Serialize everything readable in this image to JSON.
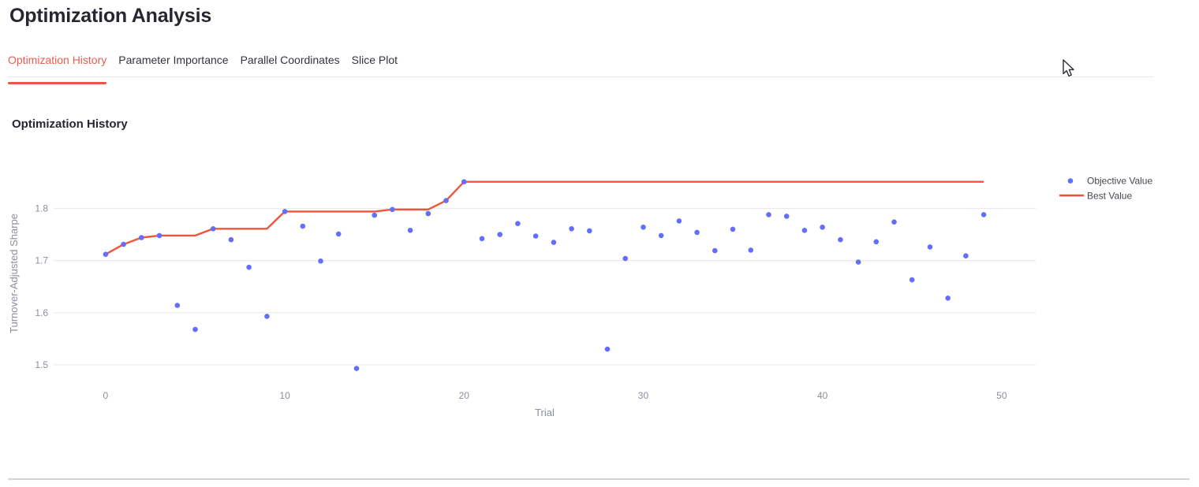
{
  "page": {
    "title": "Optimization Analysis"
  },
  "tabs": {
    "items": [
      {
        "label": "Optimization History",
        "active": true
      },
      {
        "label": "Parameter Importance",
        "active": false
      },
      {
        "label": "Parallel Coordinates",
        "active": false
      },
      {
        "label": "Slice Plot",
        "active": false
      }
    ]
  },
  "section": {
    "title": "Optimization History"
  },
  "colors": {
    "accent_red": "#e8554a",
    "marker_blue": "#636EFA",
    "best_line_red": "#EF553B",
    "grid": "#e8e9f1",
    "axis_text": "#8b8e9d",
    "heading_text": "#262730"
  },
  "chart_data": {
    "type": "scatter",
    "title": "",
    "xlabel": "Trial",
    "ylabel": "Turnover-Adjusted Sharpe",
    "x_ticks": [
      0,
      10,
      20,
      30,
      40,
      50
    ],
    "y_ticks": [
      1.5,
      1.6,
      1.7,
      1.8
    ],
    "x_range": [
      -2.9,
      51.9
    ],
    "y_range": [
      1.478,
      1.902
    ],
    "grid": true,
    "legend_position": "right",
    "x": [
      0,
      1,
      2,
      3,
      4,
      5,
      6,
      7,
      8,
      9,
      10,
      11,
      12,
      13,
      14,
      15,
      16,
      17,
      18,
      19,
      20,
      21,
      22,
      23,
      24,
      25,
      26,
      27,
      28,
      29,
      30,
      31,
      32,
      33,
      34,
      35,
      36,
      37,
      38,
      39,
      40,
      41,
      42,
      43,
      44,
      45,
      46,
      47,
      48,
      49
    ],
    "series": [
      {
        "name": "Objective Value",
        "type": "scatter",
        "color": "#636EFA",
        "values": [
          1.712,
          1.731,
          1.744,
          1.748,
          1.614,
          1.568,
          1.761,
          1.74,
          1.687,
          1.593,
          1.794,
          1.766,
          1.699,
          1.751,
          1.493,
          1.787,
          1.798,
          1.758,
          1.79,
          1.815,
          1.851,
          1.742,
          1.75,
          1.771,
          1.747,
          1.735,
          1.761,
          1.757,
          1.53,
          1.704,
          1.764,
          1.748,
          1.776,
          1.754,
          1.719,
          1.76,
          1.72,
          1.788,
          1.785,
          1.758,
          1.764,
          1.74,
          1.697,
          1.736,
          1.774,
          1.663,
          1.726,
          1.628,
          1.709,
          1.788
        ]
      },
      {
        "name": "Best Value",
        "type": "line",
        "color": "#EF553B",
        "values": [
          1.712,
          1.731,
          1.744,
          1.748,
          1.748,
          1.748,
          1.761,
          1.761,
          1.761,
          1.761,
          1.794,
          1.794,
          1.794,
          1.794,
          1.794,
          1.794,
          1.798,
          1.798,
          1.798,
          1.815,
          1.851,
          1.851,
          1.851,
          1.851,
          1.851,
          1.851,
          1.851,
          1.851,
          1.851,
          1.851,
          1.851,
          1.851,
          1.851,
          1.851,
          1.851,
          1.851,
          1.851,
          1.851,
          1.851,
          1.851,
          1.851,
          1.851,
          1.851,
          1.851,
          1.851,
          1.851,
          1.851,
          1.851,
          1.851,
          1.851
        ]
      }
    ]
  }
}
